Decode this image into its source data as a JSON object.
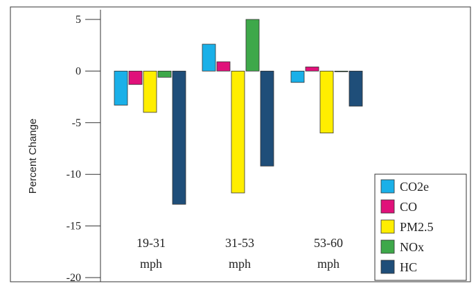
{
  "chart_data": {
    "type": "bar",
    "title": "",
    "xlabel": "",
    "ylabel": "Percent Change",
    "ylim": [
      -20,
      5
    ],
    "yticks": [
      5,
      0,
      -5,
      -10,
      -15,
      -20
    ],
    "grid": false,
    "legend_position": "bottom-right",
    "categories": [
      {
        "line1": "19-31",
        "line2": "mph"
      },
      {
        "line1": "31-53",
        "line2": "mph"
      },
      {
        "line1": "53-60",
        "line2": "mph"
      }
    ],
    "series": [
      {
        "name": "CO2e",
        "color": "#1ab0e8",
        "values": [
          -3.3,
          2.6,
          -1.1
        ]
      },
      {
        "name": "CO",
        "color": "#e0117a",
        "values": [
          -1.3,
          0.9,
          0.4
        ]
      },
      {
        "name": "PM2.5",
        "color": "#ffee00",
        "values": [
          -4.0,
          -11.8,
          -6.0
        ]
      },
      {
        "name": "NOx",
        "color": "#3ea84a",
        "values": [
          -0.6,
          5.0,
          0.0
        ]
      },
      {
        "name": "HC",
        "color": "#1f4e79",
        "values": [
          -12.9,
          -9.2,
          -3.4
        ]
      }
    ]
  }
}
